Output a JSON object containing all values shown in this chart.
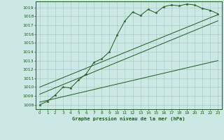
{
  "title": "Graphe pression niveau de la mer (hPa)",
  "bg_color": "#cce8e4",
  "grid_color": "#aaccc8",
  "line_color": "#1a5c1a",
  "xlim": [
    -0.5,
    23.5
  ],
  "ylim": [
    1007.5,
    1019.7
  ],
  "yticks": [
    1008,
    1009,
    1010,
    1011,
    1012,
    1013,
    1014,
    1015,
    1016,
    1017,
    1018,
    1019
  ],
  "xticks": [
    0,
    1,
    2,
    3,
    4,
    5,
    6,
    7,
    8,
    9,
    10,
    11,
    12,
    13,
    14,
    15,
    16,
    17,
    18,
    19,
    20,
    21,
    22,
    23
  ],
  "main_x": [
    0,
    1,
    2,
    3,
    4,
    5,
    6,
    7,
    8,
    9,
    10,
    11,
    12,
    13,
    14,
    15,
    16,
    17,
    18,
    19,
    20,
    21,
    22,
    23
  ],
  "main_y": [
    1008.0,
    1008.4,
    1009.1,
    1010.0,
    1009.9,
    1010.8,
    1011.5,
    1012.8,
    1013.2,
    1014.0,
    1015.9,
    1017.5,
    1018.5,
    1018.1,
    1018.8,
    1018.4,
    1019.1,
    1019.3,
    1019.2,
    1019.4,
    1019.3,
    1018.9,
    1018.7,
    1018.3
  ],
  "trend1_x": [
    0,
    23
  ],
  "trend1_y": [
    1008.3,
    1013.0
  ],
  "trend2_x": [
    0,
    23
  ],
  "trend2_y": [
    1009.2,
    1017.5
  ],
  "trend3_x": [
    0,
    23
  ],
  "trend3_y": [
    1010.0,
    1018.2
  ],
  "figsize": [
    3.2,
    2.0
  ],
  "dpi": 100
}
